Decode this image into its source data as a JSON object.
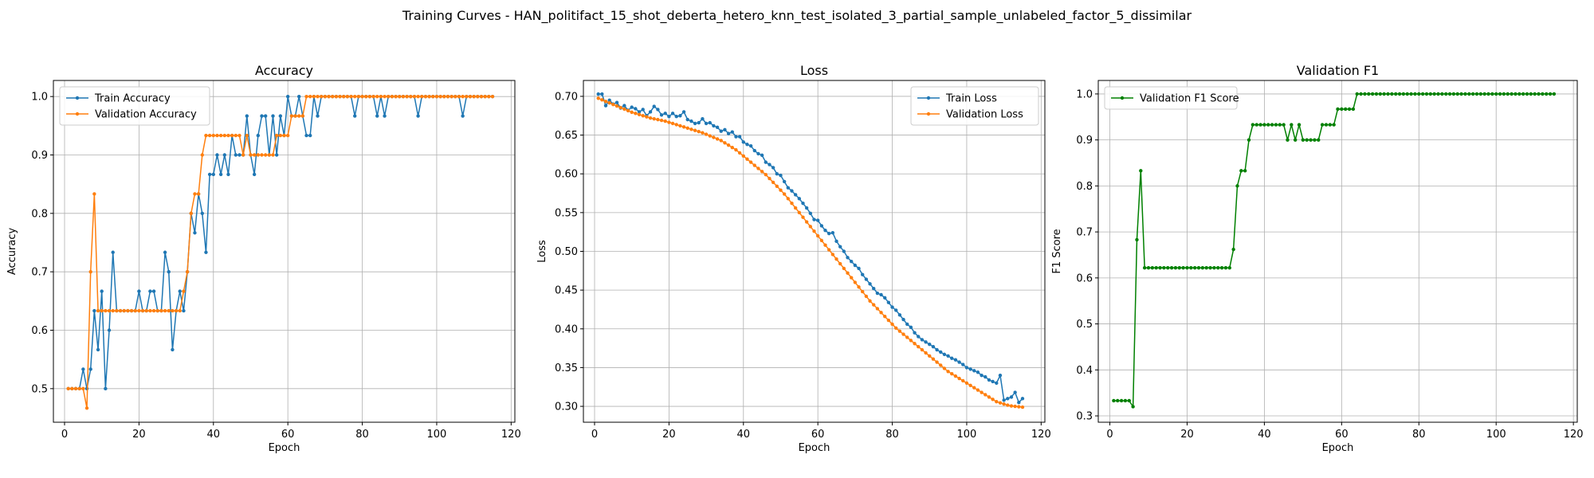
{
  "figure_title": "Training Curves - HAN_politifact_15_shot_deberta_hetero_knn_test_isolated_3_partial_sample_unlabeled_factor_5_dissimilar",
  "colors": {
    "train": "#1f77b4",
    "validation": "#ff7f0e",
    "f1": "#008000"
  },
  "chart_data": [
    {
      "type": "line",
      "title": "Accuracy",
      "xlabel": "Epoch",
      "ylabel": "Accuracy",
      "xlim": [
        -3,
        121
      ],
      "ylim": [
        0.4425,
        1.0275
      ],
      "xticks": [
        0,
        20,
        40,
        60,
        80,
        100,
        120
      ],
      "yticks": [
        0.5,
        0.6,
        0.7,
        0.8,
        0.9,
        1.0
      ],
      "ytick_labels": [
        "0.5",
        "0.6",
        "0.7",
        "0.8",
        "0.9",
        "1.0"
      ],
      "legend_loc": "upper-left",
      "grid": true,
      "series": [
        {
          "name": "Train Accuracy",
          "color_key": "train",
          "values": [
            0.5,
            0.5,
            0.5,
            0.5,
            0.5333,
            0.5,
            0.5333,
            0.6333,
            0.5667,
            0.6667,
            0.5,
            0.6,
            0.7333,
            0.6333,
            0.6333,
            0.6333,
            0.6333,
            0.6333,
            0.6333,
            0.6667,
            0.6333,
            0.6333,
            0.6667,
            0.6667,
            0.6333,
            0.6333,
            0.7333,
            0.7,
            0.5667,
            0.6333,
            0.6667,
            0.6333,
            0.7,
            0.8,
            0.7667,
            0.8333,
            0.8,
            0.7333,
            0.8667,
            0.8667,
            0.9,
            0.8667,
            0.9,
            0.8667,
            0.9333,
            0.9,
            0.9,
            0.9,
            0.9667,
            0.9,
            0.8667,
            0.9333,
            0.9667,
            0.9667,
            0.9,
            0.9667,
            0.9,
            0.9667,
            0.9333,
            1.0,
            0.9667,
            0.9667,
            1.0,
            0.9667,
            0.9333,
            0.9333,
            1.0,
            0.9667,
            1.0,
            1.0,
            1.0,
            1.0,
            1.0,
            1.0,
            1.0,
            1.0,
            1.0,
            0.9667,
            1.0,
            1.0,
            1.0,
            1.0,
            1.0,
            0.9667,
            1.0,
            0.9667,
            1.0,
            1.0,
            1.0,
            1.0,
            1.0,
            1.0,
            1.0,
            1.0,
            0.9667,
            1.0,
            1.0,
            1.0,
            1.0,
            1.0,
            1.0,
            1.0,
            1.0,
            1.0,
            1.0,
            1.0,
            0.9667,
            1.0,
            1.0,
            1.0,
            1.0,
            1.0,
            1.0,
            1.0,
            1.0
          ]
        },
        {
          "name": "Validation Accuracy",
          "color_key": "validation",
          "values": [
            0.5,
            0.5,
            0.5,
            0.5,
            0.5,
            0.4667,
            0.7,
            0.8333,
            0.6333,
            0.6333,
            0.6333,
            0.6333,
            0.6333,
            0.6333,
            0.6333,
            0.6333,
            0.6333,
            0.6333,
            0.6333,
            0.6333,
            0.6333,
            0.6333,
            0.6333,
            0.6333,
            0.6333,
            0.6333,
            0.6333,
            0.6333,
            0.6333,
            0.6333,
            0.6333,
            0.6667,
            0.7,
            0.8,
            0.8333,
            0.8333,
            0.9,
            0.9333,
            0.9333,
            0.9333,
            0.9333,
            0.9333,
            0.9333,
            0.9333,
            0.9333,
            0.9333,
            0.9333,
            0.9,
            0.9333,
            0.9,
            0.9,
            0.9,
            0.9,
            0.9,
            0.9,
            0.9,
            0.9333,
            0.9333,
            0.9333,
            0.9333,
            0.9667,
            0.9667,
            0.9667,
            0.9667,
            1.0,
            1.0,
            1.0,
            1.0,
            1.0,
            1.0,
            1.0,
            1.0,
            1.0,
            1.0,
            1.0,
            1.0,
            1.0,
            1.0,
            1.0,
            1.0,
            1.0,
            1.0,
            1.0,
            1.0,
            1.0,
            1.0,
            1.0,
            1.0,
            1.0,
            1.0,
            1.0,
            1.0,
            1.0,
            1.0,
            1.0,
            1.0,
            1.0,
            1.0,
            1.0,
            1.0,
            1.0,
            1.0,
            1.0,
            1.0,
            1.0,
            1.0,
            1.0,
            1.0,
            1.0,
            1.0,
            1.0,
            1.0,
            1.0,
            1.0,
            1.0
          ]
        }
      ]
    },
    {
      "type": "line",
      "title": "Loss",
      "xlabel": "Epoch",
      "ylabel": "Loss",
      "xlim": [
        -3,
        121
      ],
      "ylim": [
        0.2795,
        0.7205
      ],
      "xticks": [
        0,
        20,
        40,
        60,
        80,
        100,
        120
      ],
      "yticks": [
        0.3,
        0.35,
        0.4,
        0.45,
        0.5,
        0.55,
        0.6,
        0.65,
        0.7
      ],
      "ytick_labels": [
        "0.30",
        "0.35",
        "0.40",
        "0.45",
        "0.50",
        "0.55",
        "0.60",
        "0.65",
        "0.70"
      ],
      "legend_loc": "upper-right",
      "grid": true,
      "series": [
        {
          "name": "Train Loss",
          "color_key": "train",
          "values": [
            0.703,
            0.703,
            0.688,
            0.695,
            0.69,
            0.692,
            0.685,
            0.688,
            0.682,
            0.686,
            0.684,
            0.68,
            0.683,
            0.675,
            0.68,
            0.687,
            0.683,
            0.676,
            0.678,
            0.674,
            0.678,
            0.674,
            0.675,
            0.68,
            0.67,
            0.668,
            0.665,
            0.666,
            0.671,
            0.665,
            0.666,
            0.662,
            0.66,
            0.655,
            0.657,
            0.652,
            0.654,
            0.648,
            0.648,
            0.641,
            0.638,
            0.636,
            0.63,
            0.626,
            0.624,
            0.615,
            0.612,
            0.608,
            0.6,
            0.598,
            0.59,
            0.582,
            0.578,
            0.573,
            0.568,
            0.562,
            0.556,
            0.549,
            0.541,
            0.54,
            0.533,
            0.527,
            0.523,
            0.524,
            0.513,
            0.506,
            0.5,
            0.492,
            0.487,
            0.482,
            0.478,
            0.47,
            0.464,
            0.458,
            0.452,
            0.446,
            0.444,
            0.44,
            0.434,
            0.428,
            0.424,
            0.418,
            0.412,
            0.406,
            0.402,
            0.395,
            0.39,
            0.386,
            0.383,
            0.38,
            0.377,
            0.373,
            0.37,
            0.367,
            0.365,
            0.362,
            0.36,
            0.357,
            0.354,
            0.35,
            0.348,
            0.346,
            0.344,
            0.34,
            0.338,
            0.334,
            0.332,
            0.33,
            0.34,
            0.308,
            0.31,
            0.312,
            0.318,
            0.305,
            0.31
          ]
        },
        {
          "name": "Validation Loss",
          "color_key": "validation",
          "values": [
            0.6975,
            0.6955,
            0.6935,
            0.6915,
            0.6895,
            0.6875,
            0.6855,
            0.6835,
            0.6815,
            0.6795,
            0.678,
            0.6765,
            0.675,
            0.6735,
            0.672,
            0.671,
            0.67,
            0.669,
            0.668,
            0.6665,
            0.665,
            0.6635,
            0.662,
            0.6605,
            0.659,
            0.6575,
            0.656,
            0.6545,
            0.653,
            0.651,
            0.649,
            0.647,
            0.645,
            0.643,
            0.64,
            0.637,
            0.634,
            0.631,
            0.627,
            0.623,
            0.619,
            0.615,
            0.611,
            0.607,
            0.603,
            0.599,
            0.594,
            0.589,
            0.584,
            0.579,
            0.574,
            0.568,
            0.562,
            0.556,
            0.55,
            0.544,
            0.538,
            0.532,
            0.526,
            0.52,
            0.514,
            0.508,
            0.502,
            0.496,
            0.49,
            0.484,
            0.478,
            0.472,
            0.466,
            0.46,
            0.454,
            0.448,
            0.442,
            0.436,
            0.431,
            0.426,
            0.421,
            0.416,
            0.411,
            0.406,
            0.401,
            0.397,
            0.393,
            0.389,
            0.385,
            0.381,
            0.377,
            0.373,
            0.369,
            0.365,
            0.361,
            0.357,
            0.353,
            0.349,
            0.345,
            0.342,
            0.339,
            0.336,
            0.333,
            0.33,
            0.327,
            0.324,
            0.321,
            0.318,
            0.315,
            0.312,
            0.309,
            0.306,
            0.3045,
            0.303,
            0.3015,
            0.3005,
            0.3,
            0.2995,
            0.299
          ]
        }
      ]
    },
    {
      "type": "line",
      "title": "Validation F1",
      "xlabel": "Epoch",
      "ylabel": "F1 Score",
      "xlim": [
        -3,
        121
      ],
      "ylim": [
        0.2862,
        1.0293
      ],
      "xticks": [
        0,
        20,
        40,
        60,
        80,
        100,
        120
      ],
      "yticks": [
        0.3,
        0.4,
        0.5,
        0.6,
        0.7,
        0.8,
        0.9,
        1.0
      ],
      "ytick_labels": [
        "0.3",
        "0.4",
        "0.5",
        "0.6",
        "0.7",
        "0.8",
        "0.9",
        "1.0"
      ],
      "legend_loc": "upper-left",
      "grid": true,
      "series": [
        {
          "name": "Validation F1 Score",
          "color_key": "f1",
          "values": [
            0.333,
            0.333,
            0.333,
            0.333,
            0.333,
            0.32,
            0.683,
            0.833,
            0.622,
            0.622,
            0.622,
            0.622,
            0.622,
            0.622,
            0.622,
            0.622,
            0.622,
            0.622,
            0.622,
            0.622,
            0.622,
            0.622,
            0.622,
            0.622,
            0.622,
            0.622,
            0.622,
            0.622,
            0.622,
            0.622,
            0.622,
            0.662,
            0.8,
            0.833,
            0.833,
            0.9,
            0.933,
            0.933,
            0.933,
            0.933,
            0.933,
            0.933,
            0.933,
            0.933,
            0.933,
            0.9,
            0.933,
            0.9,
            0.933,
            0.9,
            0.9,
            0.9,
            0.9,
            0.9,
            0.933,
            0.933,
            0.933,
            0.933,
            0.967,
            0.967,
            0.967,
            0.967,
            0.967,
            1.0,
            1.0,
            1.0,
            1.0,
            1.0,
            1.0,
            1.0,
            1.0,
            1.0,
            1.0,
            1.0,
            1.0,
            1.0,
            1.0,
            1.0,
            1.0,
            1.0,
            1.0,
            1.0,
            1.0,
            1.0,
            1.0,
            1.0,
            1.0,
            1.0,
            1.0,
            1.0,
            1.0,
            1.0,
            1.0,
            1.0,
            1.0,
            1.0,
            1.0,
            1.0,
            1.0,
            1.0,
            1.0,
            1.0,
            1.0,
            1.0,
            1.0,
            1.0,
            1.0,
            1.0,
            1.0,
            1.0,
            1.0,
            1.0,
            1.0,
            1.0,
            1.0
          ]
        }
      ]
    }
  ]
}
